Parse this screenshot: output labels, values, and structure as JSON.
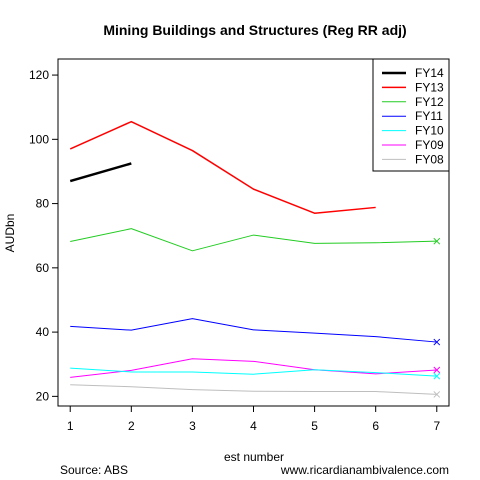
{
  "chart_data": {
    "type": "line",
    "title": "Mining Buildings and Structures (Reg RR adj)",
    "xlabel": "est number",
    "ylabel": "AUDbn",
    "x": [
      1,
      2,
      3,
      4,
      5,
      6,
      7
    ],
    "xticks": [
      "1",
      "2",
      "3",
      "4",
      "5",
      "6",
      "7"
    ],
    "yticks": [
      "20",
      "40",
      "60",
      "80",
      "100",
      "120"
    ],
    "xlim": [
      0.8,
      7.2
    ],
    "ylim": [
      17,
      125
    ],
    "legend_position": "top-right",
    "grid": false,
    "series": [
      {
        "name": "FY14",
        "color": "#000000",
        "width": 2.5,
        "values": [
          87,
          92.5,
          null,
          null,
          null,
          null,
          null
        ]
      },
      {
        "name": "FY13",
        "color": "#ff0000",
        "width": 1.5,
        "values": [
          97,
          105.5,
          96.5,
          84.5,
          77,
          78.8,
          null
        ]
      },
      {
        "name": "FY12",
        "color": "#22cc22",
        "width": 1,
        "values": [
          68.2,
          72.2,
          65.3,
          70.2,
          67.6,
          67.8,
          68.3
        ],
        "end_marker": "x"
      },
      {
        "name": "FY11",
        "color": "#0000ff",
        "width": 1,
        "values": [
          41.8,
          40.6,
          44.2,
          40.7,
          39.7,
          38.6,
          36.9
        ],
        "end_marker": "x"
      },
      {
        "name": "FY10",
        "color": "#00ffff",
        "width": 1,
        "values": [
          28.8,
          27.6,
          27.6,
          26.9,
          28.3,
          27.4,
          26.3
        ],
        "end_marker": "x"
      },
      {
        "name": "FY09",
        "color": "#ff00ff",
        "width": 1,
        "values": [
          25.9,
          28.1,
          31.7,
          30.9,
          28.3,
          27.0,
          28.2
        ],
        "end_marker": "x"
      },
      {
        "name": "FY08",
        "color": "#bebebe",
        "width": 1,
        "values": [
          23.6,
          23.0,
          22.1,
          21.6,
          21.5,
          21.5,
          20.6
        ],
        "end_marker": "x"
      }
    ]
  },
  "notes": {
    "source": "Source: ABS",
    "website": "www.ricardianambivalence.com"
  }
}
